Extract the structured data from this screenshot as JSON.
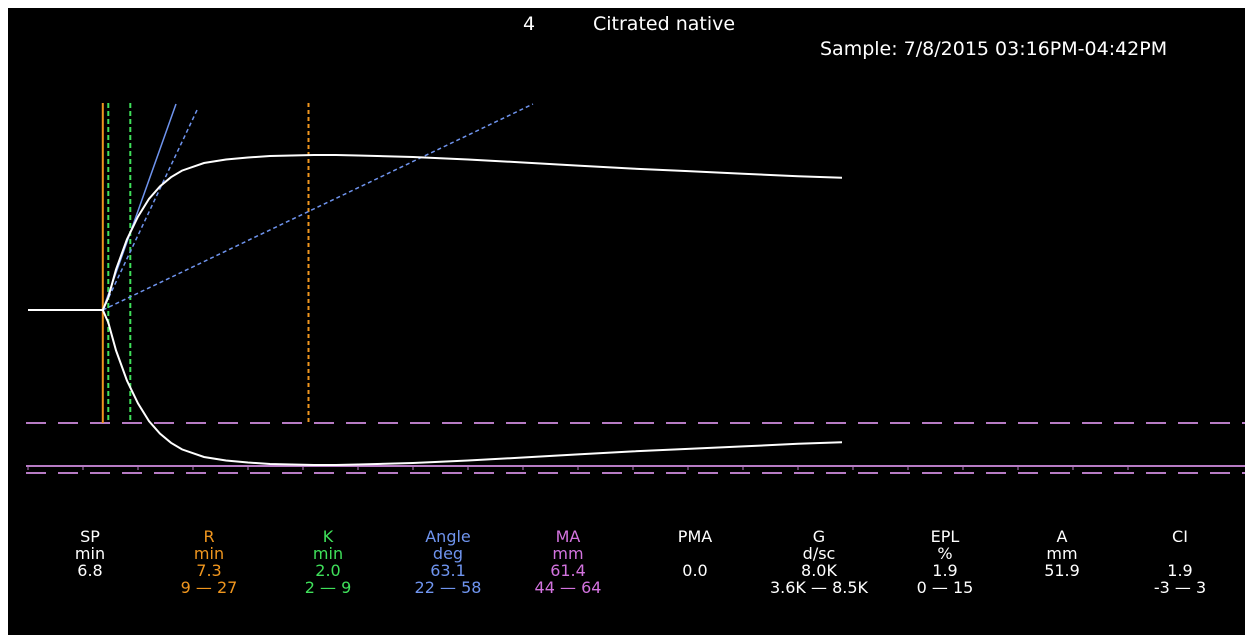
{
  "header": {
    "sample_number": "4",
    "sample_title": "Citrated native",
    "sample_time": "Sample: 7/8/2015 03:16PM-04:42PM"
  },
  "colors": {
    "background": "#000000",
    "trace": "#ffffff",
    "sp": "#ffffff",
    "r": "#f0961e",
    "k": "#3fe05a",
    "angle": "#6f94ee",
    "ma": "#d373df",
    "guide": "#b77bc4"
  },
  "parameters": [
    {
      "name": "SP",
      "unit": "min",
      "value": "6.8",
      "range": "",
      "color": "#ffffff"
    },
    {
      "name": "R",
      "unit": "min",
      "value": "7.3",
      "range": "9 — 27",
      "color": "#f0961e"
    },
    {
      "name": "K",
      "unit": "min",
      "value": "2.0",
      "range": "2 — 9",
      "color": "#3fe05a"
    },
    {
      "name": "Angle",
      "unit": "deg",
      "value": "63.1",
      "range": "22 — 58",
      "color": "#6f94ee"
    },
    {
      "name": "MA",
      "unit": "mm",
      "value": "61.4",
      "range": "44 — 64",
      "color": "#d373df"
    },
    {
      "name": "PMA",
      "unit": "",
      "value": "0.0",
      "range": "",
      "color": "#ffffff"
    },
    {
      "name": "G",
      "unit": "d/sc",
      "value": "8.0K",
      "range": "3.6K — 8.5K",
      "color": "#ffffff"
    },
    {
      "name": "EPL",
      "unit": "%",
      "value": "1.9",
      "range": "0 — 15",
      "color": "#ffffff"
    },
    {
      "name": "A",
      "unit": "mm",
      "value": "51.9",
      "range": "",
      "color": "#ffffff"
    },
    {
      "name": "CI",
      "unit": "",
      "value": "1.9",
      "range": "-3 — 3",
      "color": "#ffffff"
    }
  ],
  "chart_data": {
    "type": "line",
    "title": "Citrated native",
    "xlabel": "",
    "ylabel": "",
    "grid": false,
    "x_unit": "min",
    "xlim": [
      0,
      74
    ],
    "ylim": [
      0,
      31
    ],
    "series": [
      {
        "name": "",
        "x": [
          0,
          6.8,
          7.3,
          8,
          9,
          10,
          11,
          12,
          13,
          14,
          16,
          18,
          20,
          22,
          24,
          26,
          28,
          30,
          35,
          40,
          45,
          50,
          55,
          60,
          65,
          70,
          74
        ],
        "y": [
          0,
          0,
          2.5,
          8,
          14,
          18.5,
          22,
          24.5,
          26.3,
          27.6,
          29.1,
          29.8,
          30.2,
          30.5,
          30.6,
          30.7,
          30.7,
          30.6,
          30.3,
          29.8,
          29.2,
          28.6,
          28.0,
          27.5,
          27.0,
          26.5,
          26.2
        ]
      }
    ],
    "markers": [
      {
        "name": "SP",
        "x": 6.8
      },
      {
        "name": "R",
        "x": 7.3
      },
      {
        "name": "K",
        "x": 9.3
      },
      {
        "name": "MA",
        "x": 25.5
      }
    ]
  }
}
